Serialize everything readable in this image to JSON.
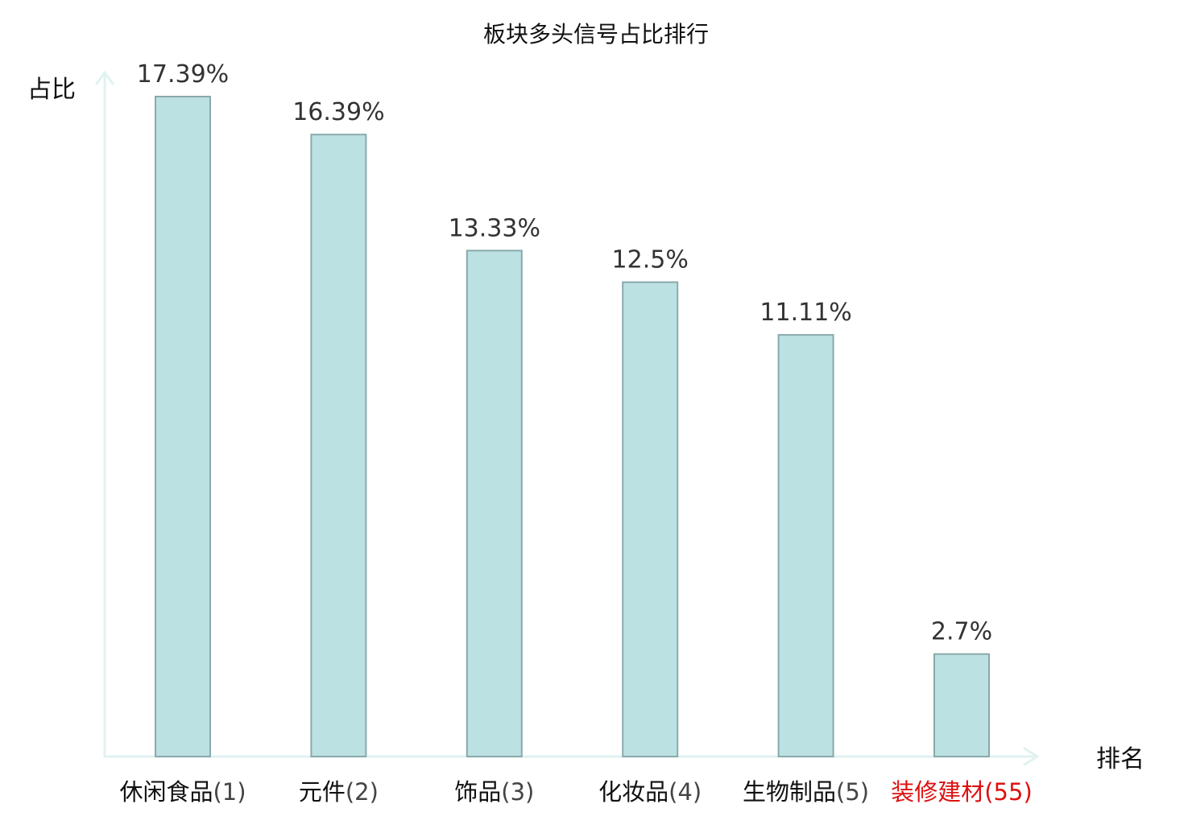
{
  "chart_data": {
    "type": "bar",
    "title": "板块多头信号占比排行",
    "ylabel": "占比",
    "xlabel": "排名",
    "categories": [
      "休闲食品",
      "元件",
      "饰品",
      "化妆品",
      "生物制品",
      "装修建材"
    ],
    "ranks": [
      "(1)",
      "(2)",
      "(3)",
      "(4)",
      "(5)",
      "(55)"
    ],
    "values": [
      17.39,
      16.39,
      13.33,
      12.5,
      11.11,
      2.7
    ],
    "value_labels": [
      "17.39%",
      "16.39%",
      "13.33%",
      "12.5%",
      "11.11%",
      "2.7%"
    ],
    "highlight_index": 5,
    "ylim": [
      0,
      17.39
    ],
    "grid": false,
    "legend": "none"
  },
  "colors": {
    "bar_fill": "#bce1e3",
    "bar_stroke": "#8aa9ab",
    "axis": "#e0f2f1",
    "category_text": "#111111",
    "rank_text": "#444444",
    "highlight_text": "#dd1111"
  }
}
